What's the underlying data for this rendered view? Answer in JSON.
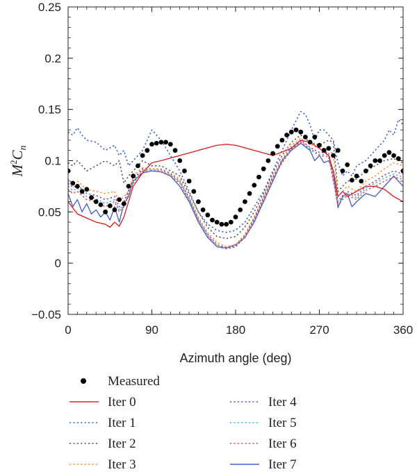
{
  "chart_data": {
    "type": "line",
    "title": "",
    "xlabel": "Azimuth angle (deg)",
    "ylabel": "M2Cn",
    "ylabel_parts": {
      "base": "M",
      "sup": "2",
      "mid": "C",
      "sub": "n"
    },
    "xlim": [
      0,
      360
    ],
    "ylim": [
      -0.05,
      0.25
    ],
    "x_ticks": [
      0,
      90,
      180,
      270,
      360
    ],
    "x_tick_labels": [
      "0",
      "90",
      "180",
      "270",
      "360"
    ],
    "y_ticks": [
      -0.05,
      0,
      0.05,
      0.1,
      0.15,
      0.2,
      0.25
    ],
    "y_tick_labels": [
      "−0.05",
      "0",
      "0.05",
      "0.1",
      "0.15",
      "0.2",
      "0.25"
    ],
    "grid": false,
    "legend_position": "bottom",
    "series": [
      {
        "name": "Measured",
        "kind": "points",
        "color": "#000000",
        "x": [
          0,
          5,
          10,
          15,
          20,
          25,
          30,
          35,
          40,
          45,
          50,
          55,
          60,
          65,
          70,
          75,
          80,
          85,
          90,
          95,
          100,
          105,
          110,
          115,
          120,
          125,
          130,
          135,
          140,
          145,
          150,
          155,
          160,
          165,
          170,
          175,
          180,
          185,
          190,
          195,
          200,
          205,
          210,
          215,
          220,
          225,
          230,
          235,
          240,
          245,
          250,
          255,
          260,
          265,
          270,
          275,
          280,
          285,
          290,
          295,
          300,
          305,
          310,
          315,
          320,
          325,
          330,
          335,
          340,
          345,
          350,
          355,
          360
        ],
        "y": [
          0.09,
          0.078,
          0.075,
          0.07,
          0.072,
          0.064,
          0.06,
          0.057,
          0.05,
          0.056,
          0.052,
          0.062,
          0.058,
          0.075,
          0.085,
          0.095,
          0.105,
          0.11,
          0.116,
          0.117,
          0.118,
          0.118,
          0.116,
          0.11,
          0.1,
          0.09,
          0.08,
          0.07,
          0.06,
          0.052,
          0.047,
          0.042,
          0.04,
          0.038,
          0.038,
          0.04,
          0.045,
          0.052,
          0.06,
          0.068,
          0.076,
          0.084,
          0.092,
          0.1,
          0.107,
          0.114,
          0.12,
          0.125,
          0.128,
          0.13,
          0.128,
          0.123,
          0.118,
          0.123,
          0.115,
          0.11,
          0.112,
          0.105,
          0.11,
          0.09,
          0.096,
          0.081,
          0.085,
          0.08,
          0.09,
          0.095,
          0.1,
          0.1,
          0.105,
          0.108,
          0.105,
          0.102,
          0.09
        ]
      },
      {
        "name": "Iter 0",
        "kind": "line",
        "color": "#d62728",
        "dash": "solid",
        "x": [
          0,
          10,
          20,
          30,
          40,
          45,
          50,
          55,
          60,
          70,
          80,
          90,
          100,
          120,
          140,
          160,
          170,
          180,
          200,
          220,
          240,
          250,
          260,
          270,
          280,
          285,
          290,
          295,
          300,
          310,
          320,
          330,
          340,
          350,
          360
        ],
        "y": [
          0.06,
          0.048,
          0.044,
          0.04,
          0.038,
          0.035,
          0.04,
          0.036,
          0.045,
          0.075,
          0.088,
          0.098,
          0.1,
          0.105,
          0.11,
          0.115,
          0.116,
          0.115,
          0.11,
          0.105,
          0.112,
          0.12,
          0.118,
          0.112,
          0.105,
          0.09,
          0.065,
          0.07,
          0.065,
          0.07,
          0.075,
          0.075,
          0.072,
          0.065,
          0.06
        ]
      },
      {
        "name": "Iter 1",
        "kind": "line",
        "color": "#3a5fcd",
        "dash": "dotted",
        "x": [
          0,
          5,
          10,
          15,
          20,
          30,
          40,
          50,
          55,
          60,
          65,
          70,
          75,
          80,
          85,
          90,
          95,
          100,
          110,
          120,
          130,
          140,
          150,
          160,
          170,
          180,
          190,
          200,
          210,
          220,
          230,
          240,
          250,
          255,
          260,
          265,
          270,
          275,
          280,
          285,
          290,
          295,
          300,
          305,
          310,
          320,
          330,
          340,
          345,
          350,
          355,
          360
        ],
        "y": [
          0.128,
          0.125,
          0.132,
          0.125,
          0.12,
          0.118,
          0.11,
          0.115,
          0.105,
          0.11,
          0.095,
          0.1,
          0.105,
          0.11,
          0.12,
          0.13,
          0.125,
          0.12,
          0.105,
          0.09,
          0.07,
          0.05,
          0.038,
          0.032,
          0.03,
          0.032,
          0.04,
          0.055,
          0.07,
          0.09,
          0.11,
          0.13,
          0.148,
          0.145,
          0.135,
          0.12,
          0.13,
          0.13,
          0.125,
          0.12,
          0.098,
          0.085,
          0.09,
          0.085,
          0.095,
          0.1,
          0.11,
          0.12,
          0.13,
          0.125,
          0.14,
          0.135
        ]
      },
      {
        "name": "Iter 2",
        "kind": "line",
        "color": "#555555",
        "dash": "dotted",
        "x": [
          0,
          5,
          10,
          20,
          30,
          40,
          50,
          55,
          60,
          65,
          70,
          75,
          80,
          90,
          100,
          110,
          120,
          130,
          140,
          150,
          160,
          170,
          180,
          190,
          200,
          210,
          220,
          230,
          240,
          250,
          260,
          270,
          280,
          285,
          290,
          295,
          300,
          310,
          320,
          330,
          340,
          350,
          360
        ],
        "y": [
          0.098,
          0.095,
          0.1,
          0.09,
          0.095,
          0.1,
          0.095,
          0.1,
          0.078,
          0.085,
          0.09,
          0.095,
          0.1,
          0.095,
          0.095,
          0.09,
          0.085,
          0.068,
          0.05,
          0.035,
          0.026,
          0.024,
          0.026,
          0.035,
          0.05,
          0.068,
          0.088,
          0.105,
          0.118,
          0.125,
          0.118,
          0.115,
          0.12,
          0.118,
          0.07,
          0.075,
          0.08,
          0.082,
          0.09,
          0.095,
          0.1,
          0.102,
          0.098
        ]
      },
      {
        "name": "Iter 3",
        "kind": "line",
        "color": "#ff8c1a",
        "dash": "dotted",
        "x": [
          0,
          5,
          10,
          20,
          30,
          40,
          50,
          55,
          60,
          65,
          70,
          80,
          90,
          100,
          110,
          120,
          130,
          140,
          150,
          160,
          170,
          180,
          190,
          200,
          210,
          220,
          230,
          240,
          250,
          260,
          270,
          280,
          285,
          290,
          295,
          300,
          310,
          320,
          330,
          340,
          350,
          360
        ],
        "y": [
          0.082,
          0.078,
          0.08,
          0.072,
          0.07,
          0.068,
          0.07,
          0.06,
          0.065,
          0.07,
          0.085,
          0.093,
          0.092,
          0.092,
          0.088,
          0.082,
          0.065,
          0.045,
          0.03,
          0.02,
          0.016,
          0.018,
          0.028,
          0.045,
          0.065,
          0.085,
          0.102,
          0.115,
          0.122,
          0.116,
          0.112,
          0.112,
          0.105,
          0.065,
          0.07,
          0.075,
          0.07,
          0.08,
          0.085,
          0.092,
          0.098,
          0.095
        ]
      },
      {
        "name": "Iter 4",
        "kind": "line",
        "color": "#a03ca0",
        "dash": "dotted",
        "x": [
          0,
          5,
          10,
          20,
          30,
          40,
          50,
          55,
          60,
          70,
          80,
          90,
          100,
          110,
          120,
          130,
          140,
          150,
          160,
          170,
          180,
          190,
          200,
          210,
          220,
          230,
          240,
          250,
          260,
          270,
          280,
          290,
          295,
          300,
          310,
          320,
          330,
          340,
          350,
          360
        ],
        "y": [
          0.078,
          0.074,
          0.076,
          0.068,
          0.066,
          0.062,
          0.065,
          0.055,
          0.06,
          0.082,
          0.092,
          0.092,
          0.091,
          0.087,
          0.08,
          0.063,
          0.043,
          0.028,
          0.018,
          0.015,
          0.017,
          0.027,
          0.044,
          0.064,
          0.084,
          0.1,
          0.113,
          0.12,
          0.113,
          0.108,
          0.108,
          0.06,
          0.066,
          0.07,
          0.066,
          0.075,
          0.08,
          0.086,
          0.09,
          0.087
        ]
      },
      {
        "name": "Iter 5",
        "kind": "line",
        "color": "#35b5e0",
        "dash": "dotted",
        "x": [
          0,
          5,
          10,
          20,
          30,
          40,
          50,
          55,
          60,
          70,
          80,
          90,
          100,
          110,
          120,
          130,
          140,
          150,
          160,
          170,
          180,
          190,
          200,
          210,
          220,
          230,
          240,
          250,
          260,
          270,
          280,
          290,
          295,
          300,
          310,
          320,
          330,
          340,
          350,
          360
        ],
        "y": [
          0.075,
          0.071,
          0.073,
          0.065,
          0.063,
          0.058,
          0.062,
          0.052,
          0.057,
          0.08,
          0.091,
          0.091,
          0.09,
          0.086,
          0.079,
          0.062,
          0.042,
          0.027,
          0.017,
          0.014,
          0.016,
          0.026,
          0.043,
          0.063,
          0.083,
          0.099,
          0.112,
          0.119,
          0.112,
          0.106,
          0.106,
          0.058,
          0.064,
          0.068,
          0.064,
          0.073,
          0.078,
          0.083,
          0.087,
          0.084
        ]
      },
      {
        "name": "Iter 6",
        "kind": "line",
        "color": "#e8453c",
        "dash": "dotted",
        "x": [
          0,
          5,
          10,
          20,
          30,
          40,
          50,
          55,
          60,
          70,
          80,
          90,
          100,
          110,
          120,
          130,
          140,
          150,
          160,
          170,
          180,
          190,
          200,
          210,
          220,
          230,
          240,
          250,
          260,
          270,
          280,
          290,
          295,
          300,
          310,
          320,
          330,
          340,
          350,
          360
        ],
        "y": [
          0.072,
          0.068,
          0.07,
          0.062,
          0.06,
          0.055,
          0.06,
          0.05,
          0.055,
          0.078,
          0.09,
          0.09,
          0.089,
          0.085,
          0.078,
          0.061,
          0.041,
          0.026,
          0.016,
          0.014,
          0.016,
          0.025,
          0.042,
          0.062,
          0.082,
          0.098,
          0.111,
          0.118,
          0.111,
          0.105,
          0.104,
          0.056,
          0.062,
          0.066,
          0.062,
          0.071,
          0.075,
          0.08,
          0.084,
          0.082
        ]
      },
      {
        "name": "Iter 7",
        "kind": "line",
        "color": "#4a63c8",
        "dash": "solid",
        "x": [
          0,
          5,
          10,
          15,
          20,
          25,
          30,
          35,
          40,
          45,
          50,
          55,
          60,
          65,
          70,
          80,
          90,
          100,
          110,
          120,
          130,
          140,
          150,
          160,
          170,
          180,
          190,
          200,
          210,
          220,
          230,
          240,
          250,
          260,
          265,
          270,
          275,
          280,
          285,
          290,
          295,
          300,
          305,
          310,
          320,
          330,
          340,
          350,
          355,
          360
        ],
        "y": [
          0.068,
          0.055,
          0.062,
          0.05,
          0.058,
          0.048,
          0.052,
          0.045,
          0.05,
          0.042,
          0.055,
          0.04,
          0.058,
          0.065,
          0.08,
          0.088,
          0.09,
          0.089,
          0.085,
          0.075,
          0.06,
          0.04,
          0.025,
          0.016,
          0.015,
          0.018,
          0.025,
          0.04,
          0.06,
          0.08,
          0.1,
          0.11,
          0.117,
          0.11,
          0.1,
          0.105,
          0.098,
          0.1,
          0.09,
          0.054,
          0.065,
          0.068,
          0.055,
          0.06,
          0.068,
          0.065,
          0.075,
          0.085,
          0.08,
          0.075
        ]
      }
    ]
  }
}
